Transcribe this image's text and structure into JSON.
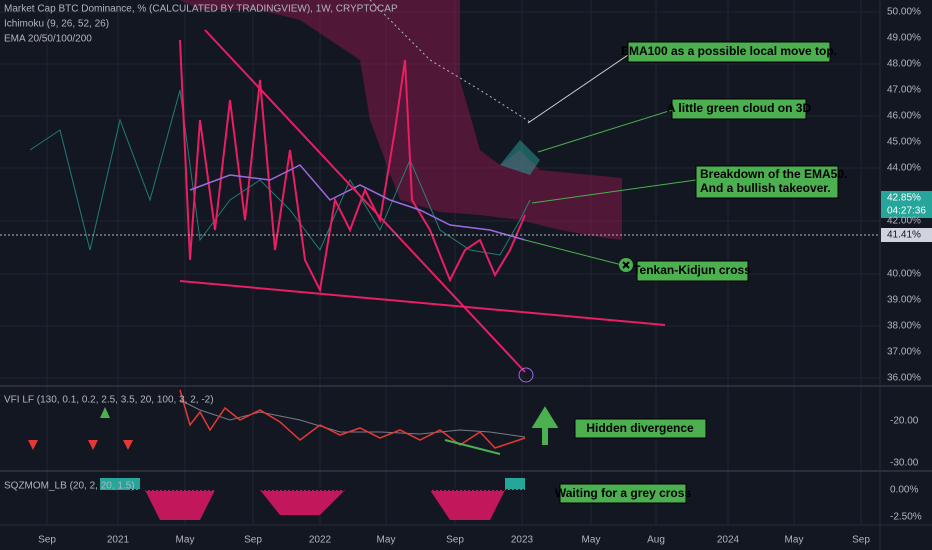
{
  "header": {
    "symbol": "Market Cap BTC Dominance, % (CALCULATED BY TRADINGVIEW), 1W, CRYPTOCAP",
    "indicators": [
      "Ichimoku (9, 26, 52, 26)",
      "EMA 20/50/100/200"
    ]
  },
  "price_axis": [
    "50.00%",
    "49.00%",
    "48.00%",
    "47.00%",
    "46.00%",
    "45.00%",
    "44.00%",
    "42.00%",
    "40.00%",
    "39.00%",
    "38.00%",
    "37.00%",
    "36.00%"
  ],
  "price_badges": {
    "last": "42.85%",
    "countdown": "04:27:36",
    "crosshair": "41.41%"
  },
  "vfi": {
    "label": "VFI LF (130, 0.1, 0.2, 2.5, 3.5, 20, 100, 3, 2, -2)",
    "axis": [
      "-20.00",
      "-30.00"
    ]
  },
  "sqzmom": {
    "label": "SQZMOM_LB (20, 2, 20, 1.5)",
    "axis": [
      "0.00%",
      "-2.50%"
    ]
  },
  "time_axis": [
    "Sep",
    "2021",
    "May",
    "Sep",
    "2022",
    "May",
    "Sep",
    "2023",
    "May",
    "Aug",
    "2024",
    "May",
    "Sep"
  ],
  "annotations": {
    "ema100": "EMA100 as a possible local move top.",
    "green_cloud": "A little green cloud on 3D",
    "breakdown": [
      "Breakdown of the EMA50.",
      "And a bullish takeover."
    ],
    "tk_cross": "Tenkan-Kidjun cross",
    "hidden_div": "Hidden divergence",
    "grey_cross": "Waiting for a grey cross"
  }
}
